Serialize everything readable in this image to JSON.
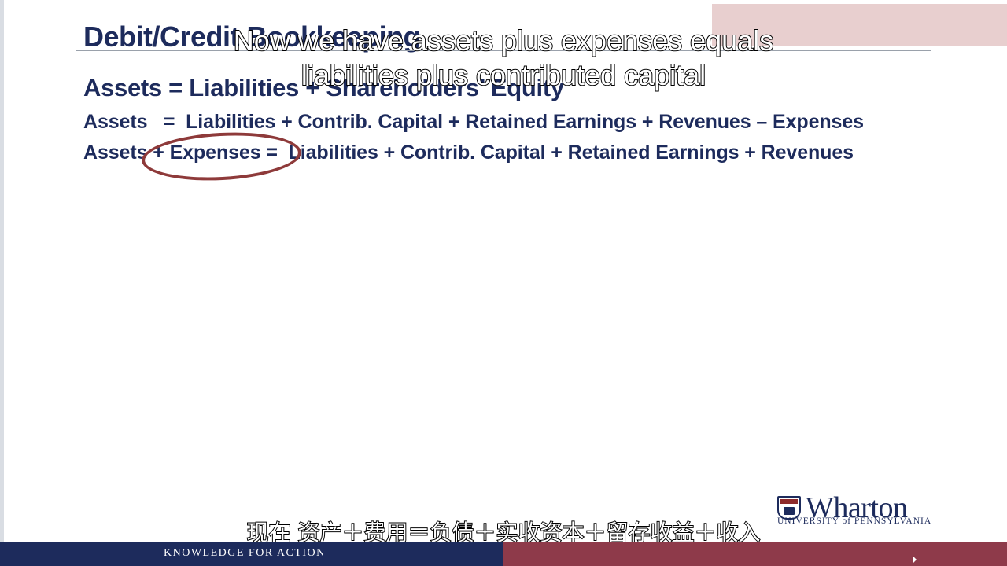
{
  "slide": {
    "title": "Debit/Credit Bookkeeping",
    "equations": [
      "Assets = Liabilities + Shareholders’ Equity",
      "Assets   =  Liabilities + Contrib. Capital + Retained Earnings + Revenues – Expenses",
      "Assets + Expenses =  Liabilities + Contrib. Capital + Retained Earnings + Revenues"
    ],
    "highlight_color": "#8e3a3a"
  },
  "subtitles": {
    "english_line1": "Now we have assets plus expenses equals",
    "english_line2": "liabilities plus contributed capital",
    "chinese": "现在 资产＋费用＝负债＋实收资本＋留存收益＋收入"
  },
  "branding": {
    "logo_name": "Wharton",
    "logo_subtitle": "UNIVERSITY of PENNSYLVANIA",
    "footer_tagline": "KNOWLEDGE FOR ACTION",
    "navy": "#1d2b5c",
    "maroon": "#8e3a4a"
  }
}
